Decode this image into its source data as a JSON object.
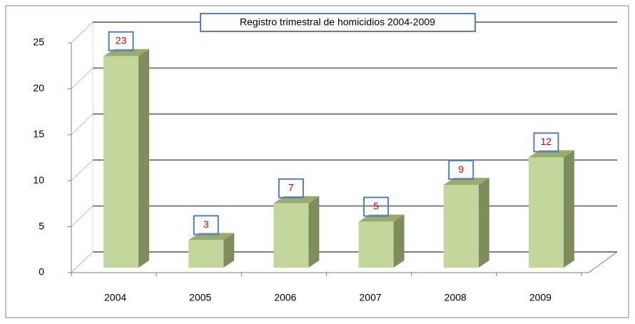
{
  "chart_data": {
    "type": "bar",
    "title": "Registro trimestral de homicidios 2004-2009",
    "categories": [
      "2004",
      "2005",
      "2006",
      "2007",
      "2008",
      "2009"
    ],
    "values": [
      23,
      3,
      7,
      5,
      9,
      12
    ],
    "color": "#c3d69b",
    "ylim": [
      0,
      25
    ],
    "yticks": [
      0,
      5,
      10,
      15,
      20,
      25
    ],
    "grid": true
  }
}
